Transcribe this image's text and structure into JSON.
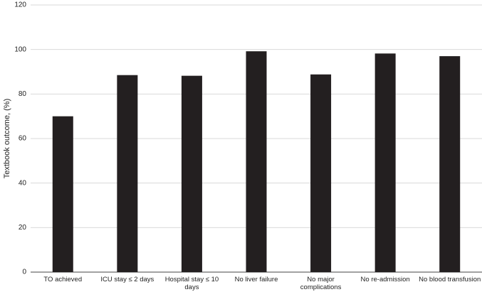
{
  "chart_data": {
    "type": "bar",
    "y_label": "Textbook outcome, (%)",
    "categories": [
      "TO achieved",
      "ICU stay ≤ 2 days",
      "Hospital stay  ≤ 10 days",
      "No liver failure",
      "No major complications",
      "No re-admission",
      "No blood transfusion"
    ],
    "values": [
      70,
      88.5,
      88.2,
      99.2,
      88.8,
      98.2,
      97
    ],
    "color": "#231f20",
    "ylim": [
      0,
      120
    ],
    "yticks": [
      0,
      20,
      40,
      60,
      80,
      100,
      120
    ],
    "grid": true
  }
}
